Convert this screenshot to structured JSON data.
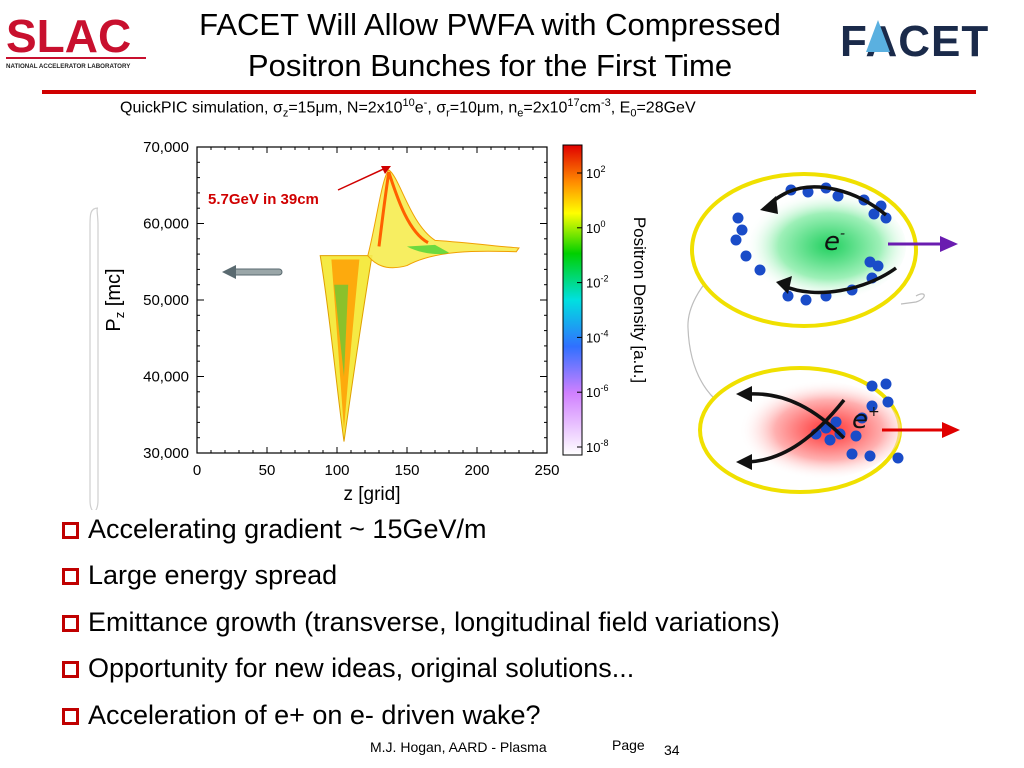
{
  "header": {
    "title_line1": "FACET Will Allow PWFA with Compressed",
    "title_line2": "Positron Bunches for the First Time",
    "slac_logo_text": "SLAC",
    "slac_logo_subtext": "NATIONAL ACCELERATOR LABORATORY",
    "facet_logo_text": "FACET"
  },
  "colors": {
    "rule": "#d00000",
    "checkbox": "#c00000",
    "electron_arrow": "#6a1cb0",
    "positron_arrow": "#e00000",
    "ellipse_outline": "#f0e000"
  },
  "simulation": {
    "caption": {
      "prefix": "QuickPIC simulation, σ",
      "sub_z": "z",
      "mid1": "=15μm, N=2x10",
      "sup_10": "10",
      "mid2": "e",
      "sup_minus": "-",
      "mid3": ", σ",
      "sub_r": "r",
      "mid4": "=10μm, n",
      "sub_e": "e",
      "mid5": "=2x10",
      "sup_17": "17",
      "mid6": "cm",
      "sup_m3": "-3",
      "mid7": ", E",
      "sub_0": "0",
      "suffix": "=28GeV"
    },
    "annotation": "5.7GeV in 39cm"
  },
  "chart_data": {
    "type": "heatmap",
    "title": "",
    "xlabel": "z [grid]",
    "ylabel_main": "P",
    "ylabel_sub": "z",
    "ylabel_unit": " [mc]",
    "xlim": [
      0,
      250
    ],
    "ylim": [
      30000,
      70000
    ],
    "x_ticks": [
      "0",
      "50",
      "100",
      "150",
      "200",
      "250"
    ],
    "y_ticks": [
      "70,000",
      "60,000",
      "50,000",
      "40,000",
      "30,000"
    ],
    "colorbar": {
      "label": "Positron Density [a.u.]",
      "tick_base": "10",
      "tick_exponents": [
        "2",
        "0",
        "-2",
        "-4",
        "-6",
        "-8"
      ]
    },
    "beam_energy_line": {
      "x": [
        0,
        100
      ],
      "y": 55800
    },
    "energy_gain_peak": {
      "z": 137,
      "pz": 67000
    },
    "energy_loss_trough": {
      "z": 105,
      "pz": 31500
    }
  },
  "diagram": {
    "top_label": "e",
    "top_sup": "-",
    "bottom_label": "e",
    "bottom_sup": "+"
  },
  "bullets": [
    "Accelerating gradient ~ 15GeV/m",
    "Large energy spread",
    "Emittance growth (transverse, longitudinal field variations)",
    "Opportunity for new ideas, original solutions...",
    "Acceleration of e+ on e- driven wake?"
  ],
  "footer": {
    "author": "M.J. Hogan, AARD - Plasma",
    "page_label": "Page",
    "page_number": "34"
  }
}
